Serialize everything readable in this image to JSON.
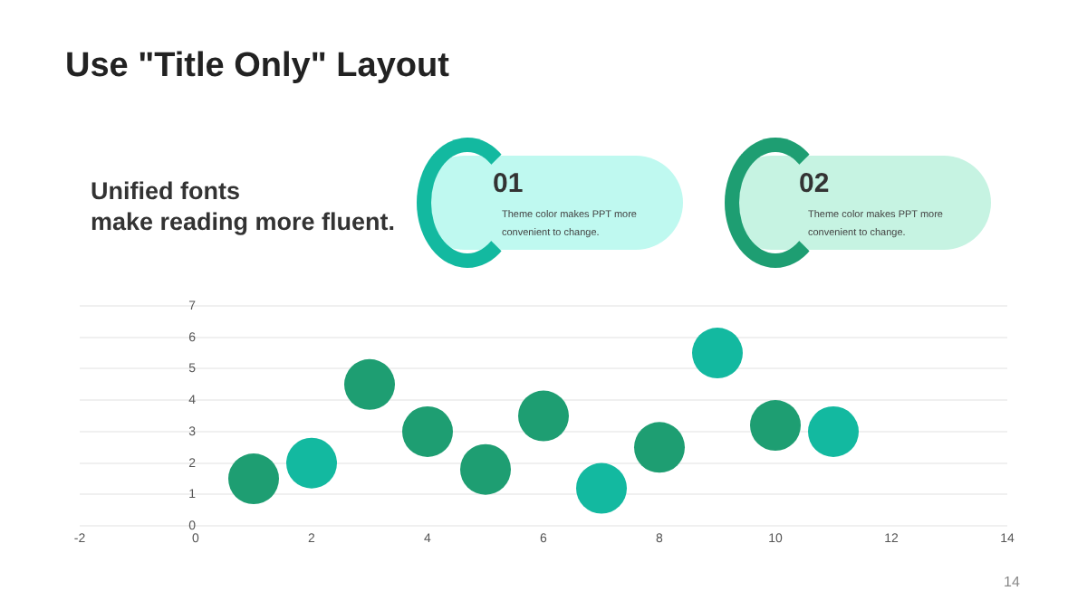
{
  "chart_data": {
    "type": "scatter",
    "title": "Use \"Title Only\" Layout",
    "subtitle": "Unified fonts\nmake reading more fluent.",
    "annotations": [
      "01",
      "Theme  color makes PPT more convenient to change.",
      "02",
      "Theme  color makes PPT more convenient to change.",
      "14"
    ],
    "x": [
      1,
      2,
      3,
      4,
      5,
      6,
      7,
      8,
      9,
      10,
      11
    ],
    "values": [
      1.5,
      2,
      4.5,
      3,
      1.8,
      3.5,
      1.2,
      2.5,
      5.5,
      3.2,
      3
    ],
    "colors": [
      "#1e9e72",
      "#13b9a0",
      "#1e9e72",
      "#1e9e72",
      "#1e9e72",
      "#1e9e72",
      "#13b9a0",
      "#1e9e72",
      "#13b9a0",
      "#1e9e72",
      "#13b9a0"
    ],
    "xlim": [
      -2,
      14
    ],
    "xticks": [
      -2,
      0,
      2,
      4,
      6,
      8,
      10,
      12,
      14
    ],
    "ylim": [
      0,
      7
    ],
    "yticks": [
      0,
      1,
      2,
      3,
      4,
      5,
      6,
      7
    ],
    "grid": "y",
    "marker": "circle",
    "legend": false
  }
}
